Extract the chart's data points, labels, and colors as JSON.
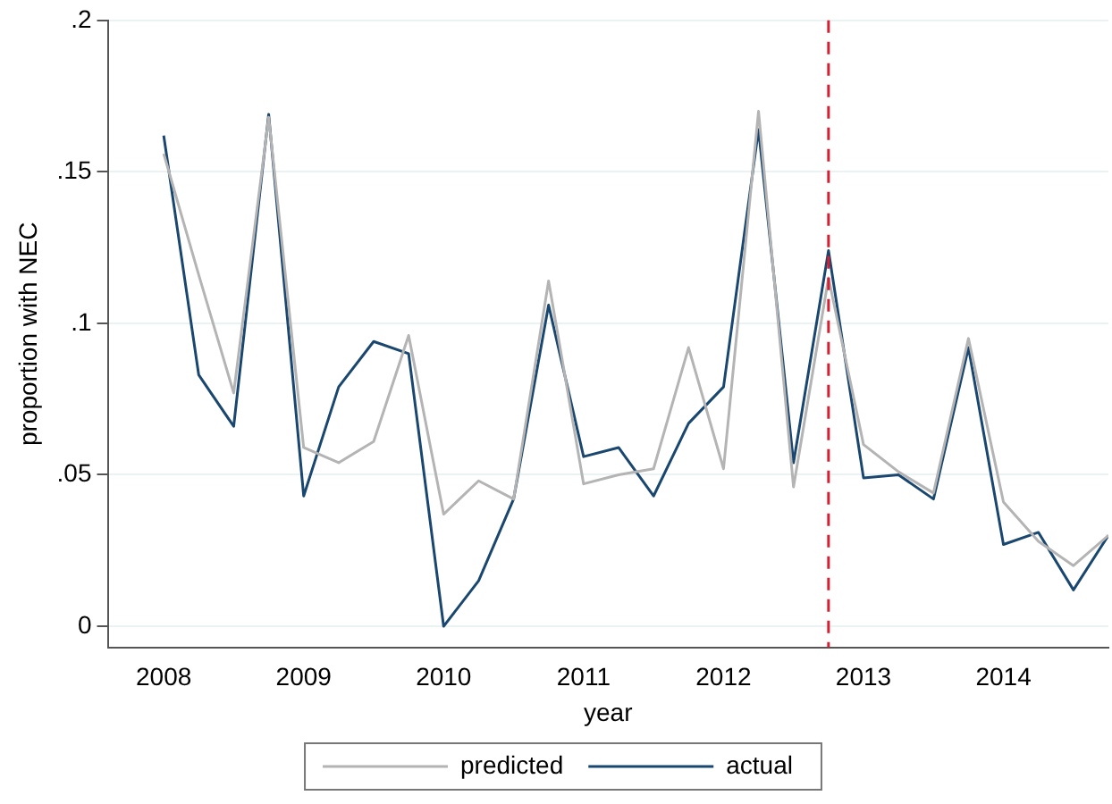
{
  "chart_data": {
    "type": "line",
    "xlabel": "year",
    "ylabel": "proportion with NEC",
    "x": [
      2008,
      2008.25,
      2008.5,
      2008.75,
      2009,
      2009.25,
      2009.5,
      2009.75,
      2010,
      2010.25,
      2010.5,
      2010.75,
      2011,
      2011.25,
      2011.5,
      2011.75,
      2012,
      2012.25,
      2012.5,
      2012.75,
      2013,
      2013.25,
      2013.5,
      2013.75,
      2014,
      2014.25,
      2014.5,
      2014.75
    ],
    "series": [
      {
        "name": "predicted",
        "color": "#b4b4b4",
        "values": [
          0.156,
          0.116,
          0.077,
          0.168,
          0.059,
          0.054,
          0.061,
          0.096,
          0.037,
          0.048,
          0.042,
          0.114,
          0.047,
          0.05,
          0.052,
          0.092,
          0.052,
          0.17,
          0.046,
          0.115,
          0.06,
          0.051,
          0.044,
          0.095,
          0.041,
          0.028,
          0.02,
          0.03
        ]
      },
      {
        "name": "actual",
        "color": "#1a476f",
        "values": [
          0.162,
          0.083,
          0.066,
          0.169,
          0.043,
          0.079,
          0.094,
          0.09,
          0,
          0.015,
          0.042,
          0.106,
          0.056,
          0.059,
          0.043,
          0.067,
          0.079,
          0.164,
          0.054,
          0.124,
          0.049,
          0.05,
          0.042,
          0.092,
          0.027,
          0.031,
          0.012,
          0.03
        ]
      }
    ],
    "xlim": [
      2007.6,
      2014.75
    ],
    "xticks": [
      2008,
      2009,
      2010,
      2011,
      2012,
      2013,
      2014
    ],
    "ylim": [
      -0.007,
      0.2
    ],
    "yticks": [
      {
        "value": 0,
        "label": "0"
      },
      {
        "value": 0.05,
        "label": ".05"
      },
      {
        "value": 0.1,
        "label": ".1"
      },
      {
        "value": 0.15,
        "label": ".15"
      },
      {
        "value": 0.2,
        "label": ".2"
      }
    ],
    "ref_lines": [
      {
        "axis": "x",
        "value": 2012.75,
        "color": "#d62031",
        "line_style": "dashed"
      }
    ],
    "grid": "y",
    "legend": "bottom",
    "marker": "none",
    "line_style": "solid"
  }
}
